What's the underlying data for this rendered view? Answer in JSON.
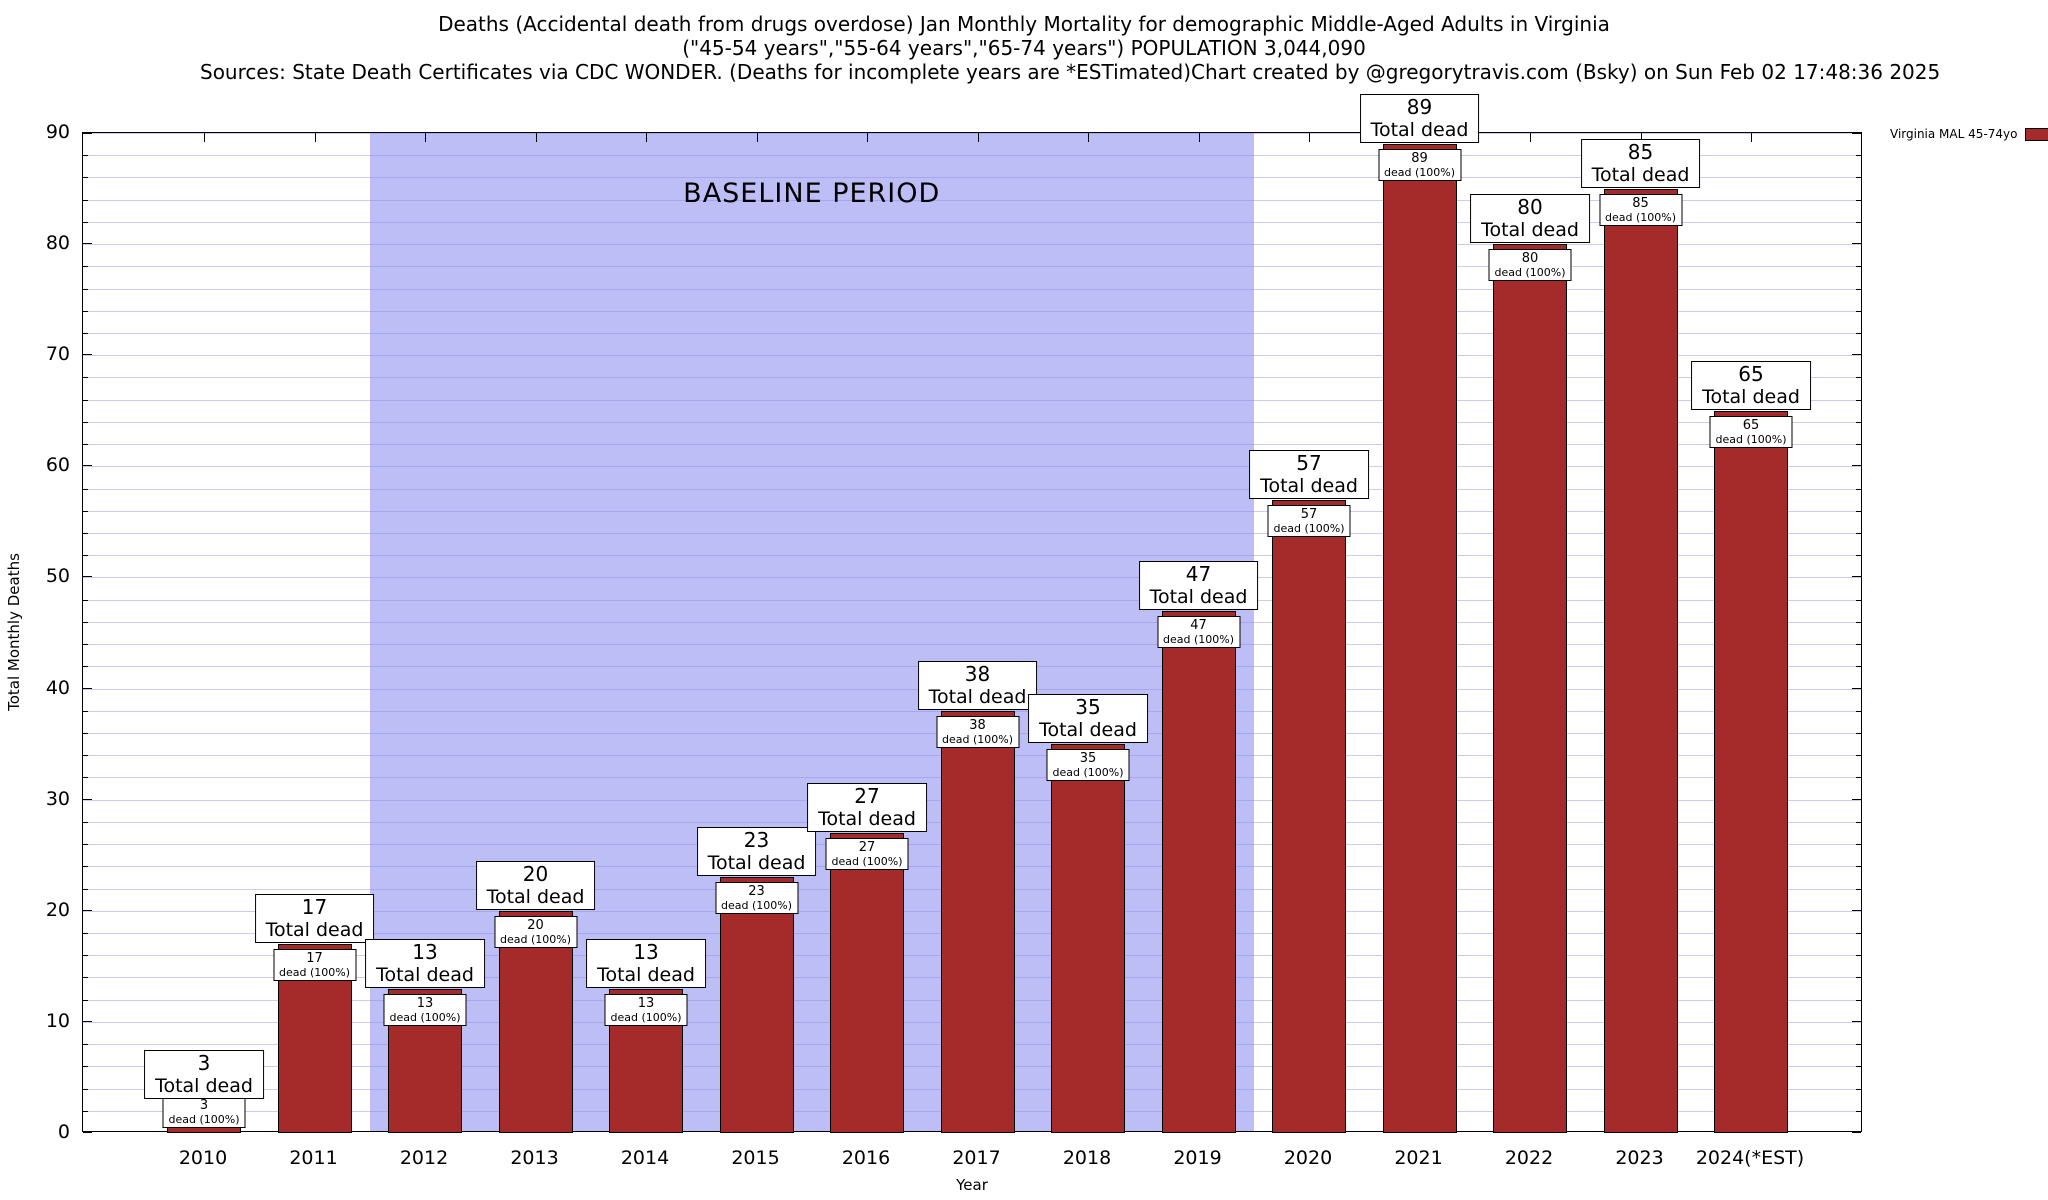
{
  "chart_data": {
    "type": "bar",
    "title": "Deaths (Accidental death from drugs overdose) Jan Monthly Mortality for demographic Middle-Aged Adults in Virginia",
    "subtitle": "(\"45-54 years\",\"55-64 years\",\"65-74 years\") POPULATION 3,044,090",
    "sources_note": "Sources: State Death Certificates via CDC WONDER. (Deaths for incomplete years are *ESTimated)",
    "credit": "Chart created by @gregorytravis.com (Bsky) on Sun Feb 02 17:48:36 2025",
    "xlabel": "Year",
    "ylabel": "Total Monthly Deaths",
    "ylim": [
      0,
      90
    ],
    "y_ticks": [
      0,
      10,
      20,
      30,
      40,
      50,
      60,
      70,
      80,
      90
    ],
    "minor_grid_step": 2,
    "categories": [
      "2010",
      "2011",
      "2012",
      "2013",
      "2014",
      "2015",
      "2016",
      "2017",
      "2018",
      "2019",
      "2020",
      "2021",
      "2022",
      "2023",
      "2024(*EST)"
    ],
    "values": [
      3,
      17,
      13,
      20,
      13,
      23,
      27,
      38,
      35,
      47,
      57,
      89,
      80,
      85,
      65
    ],
    "series_name": "Virginia MAL 45-74yo",
    "bar_color": "#a52a2a",
    "grid_color": "#ccccf2",
    "baseline": {
      "label": "BASELINE PERIOD",
      "start_index": 2,
      "end_index": 9,
      "fill": "rgba(136,136,238,0.55)"
    },
    "annotations": {
      "total_label": "Total dead",
      "pct_label": "dead (100%)"
    },
    "legend_position": "top-right",
    "grid": true
  }
}
